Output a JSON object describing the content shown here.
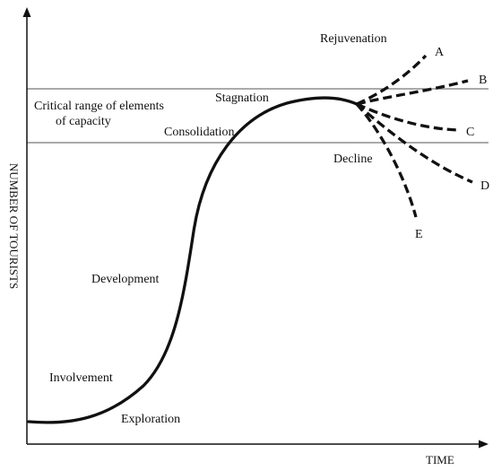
{
  "axes": {
    "x_label": "TIME",
    "y_label": "NUMBER OF TOURISTS"
  },
  "capacity_label": {
    "line1": "Critical range of elements",
    "line2": "of capacity"
  },
  "stages": {
    "exploration": "Exploration",
    "involvement": "Involvement",
    "development": "Development",
    "consolidation": "Consolidation",
    "stagnation": "Stagnation",
    "rejuvenation": "Rejuvenation",
    "decline": "Decline"
  },
  "branches": {
    "a": "A",
    "b": "B",
    "c": "C",
    "d": "D",
    "e": "E"
  },
  "colors": {
    "ink": "#111111",
    "reference_line": "#777777"
  }
}
